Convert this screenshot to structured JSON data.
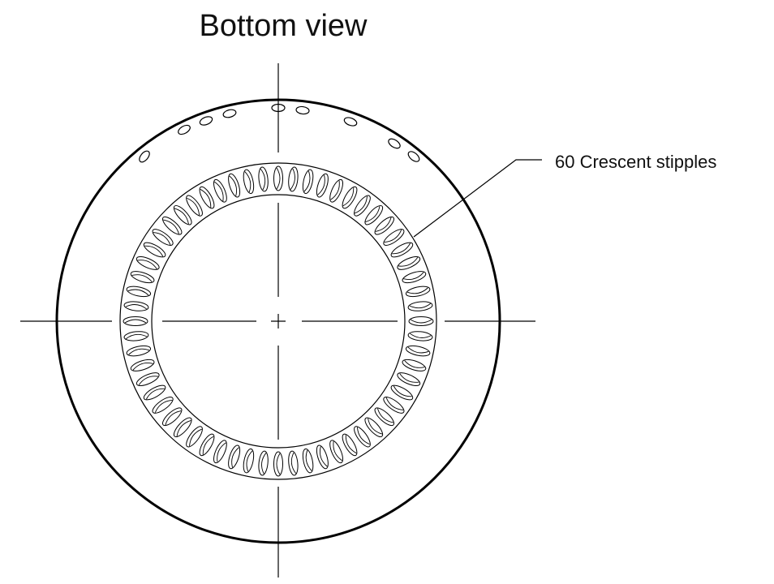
{
  "title": "Bottom view",
  "callout": {
    "label": "60 Crescent stipples"
  }
}
